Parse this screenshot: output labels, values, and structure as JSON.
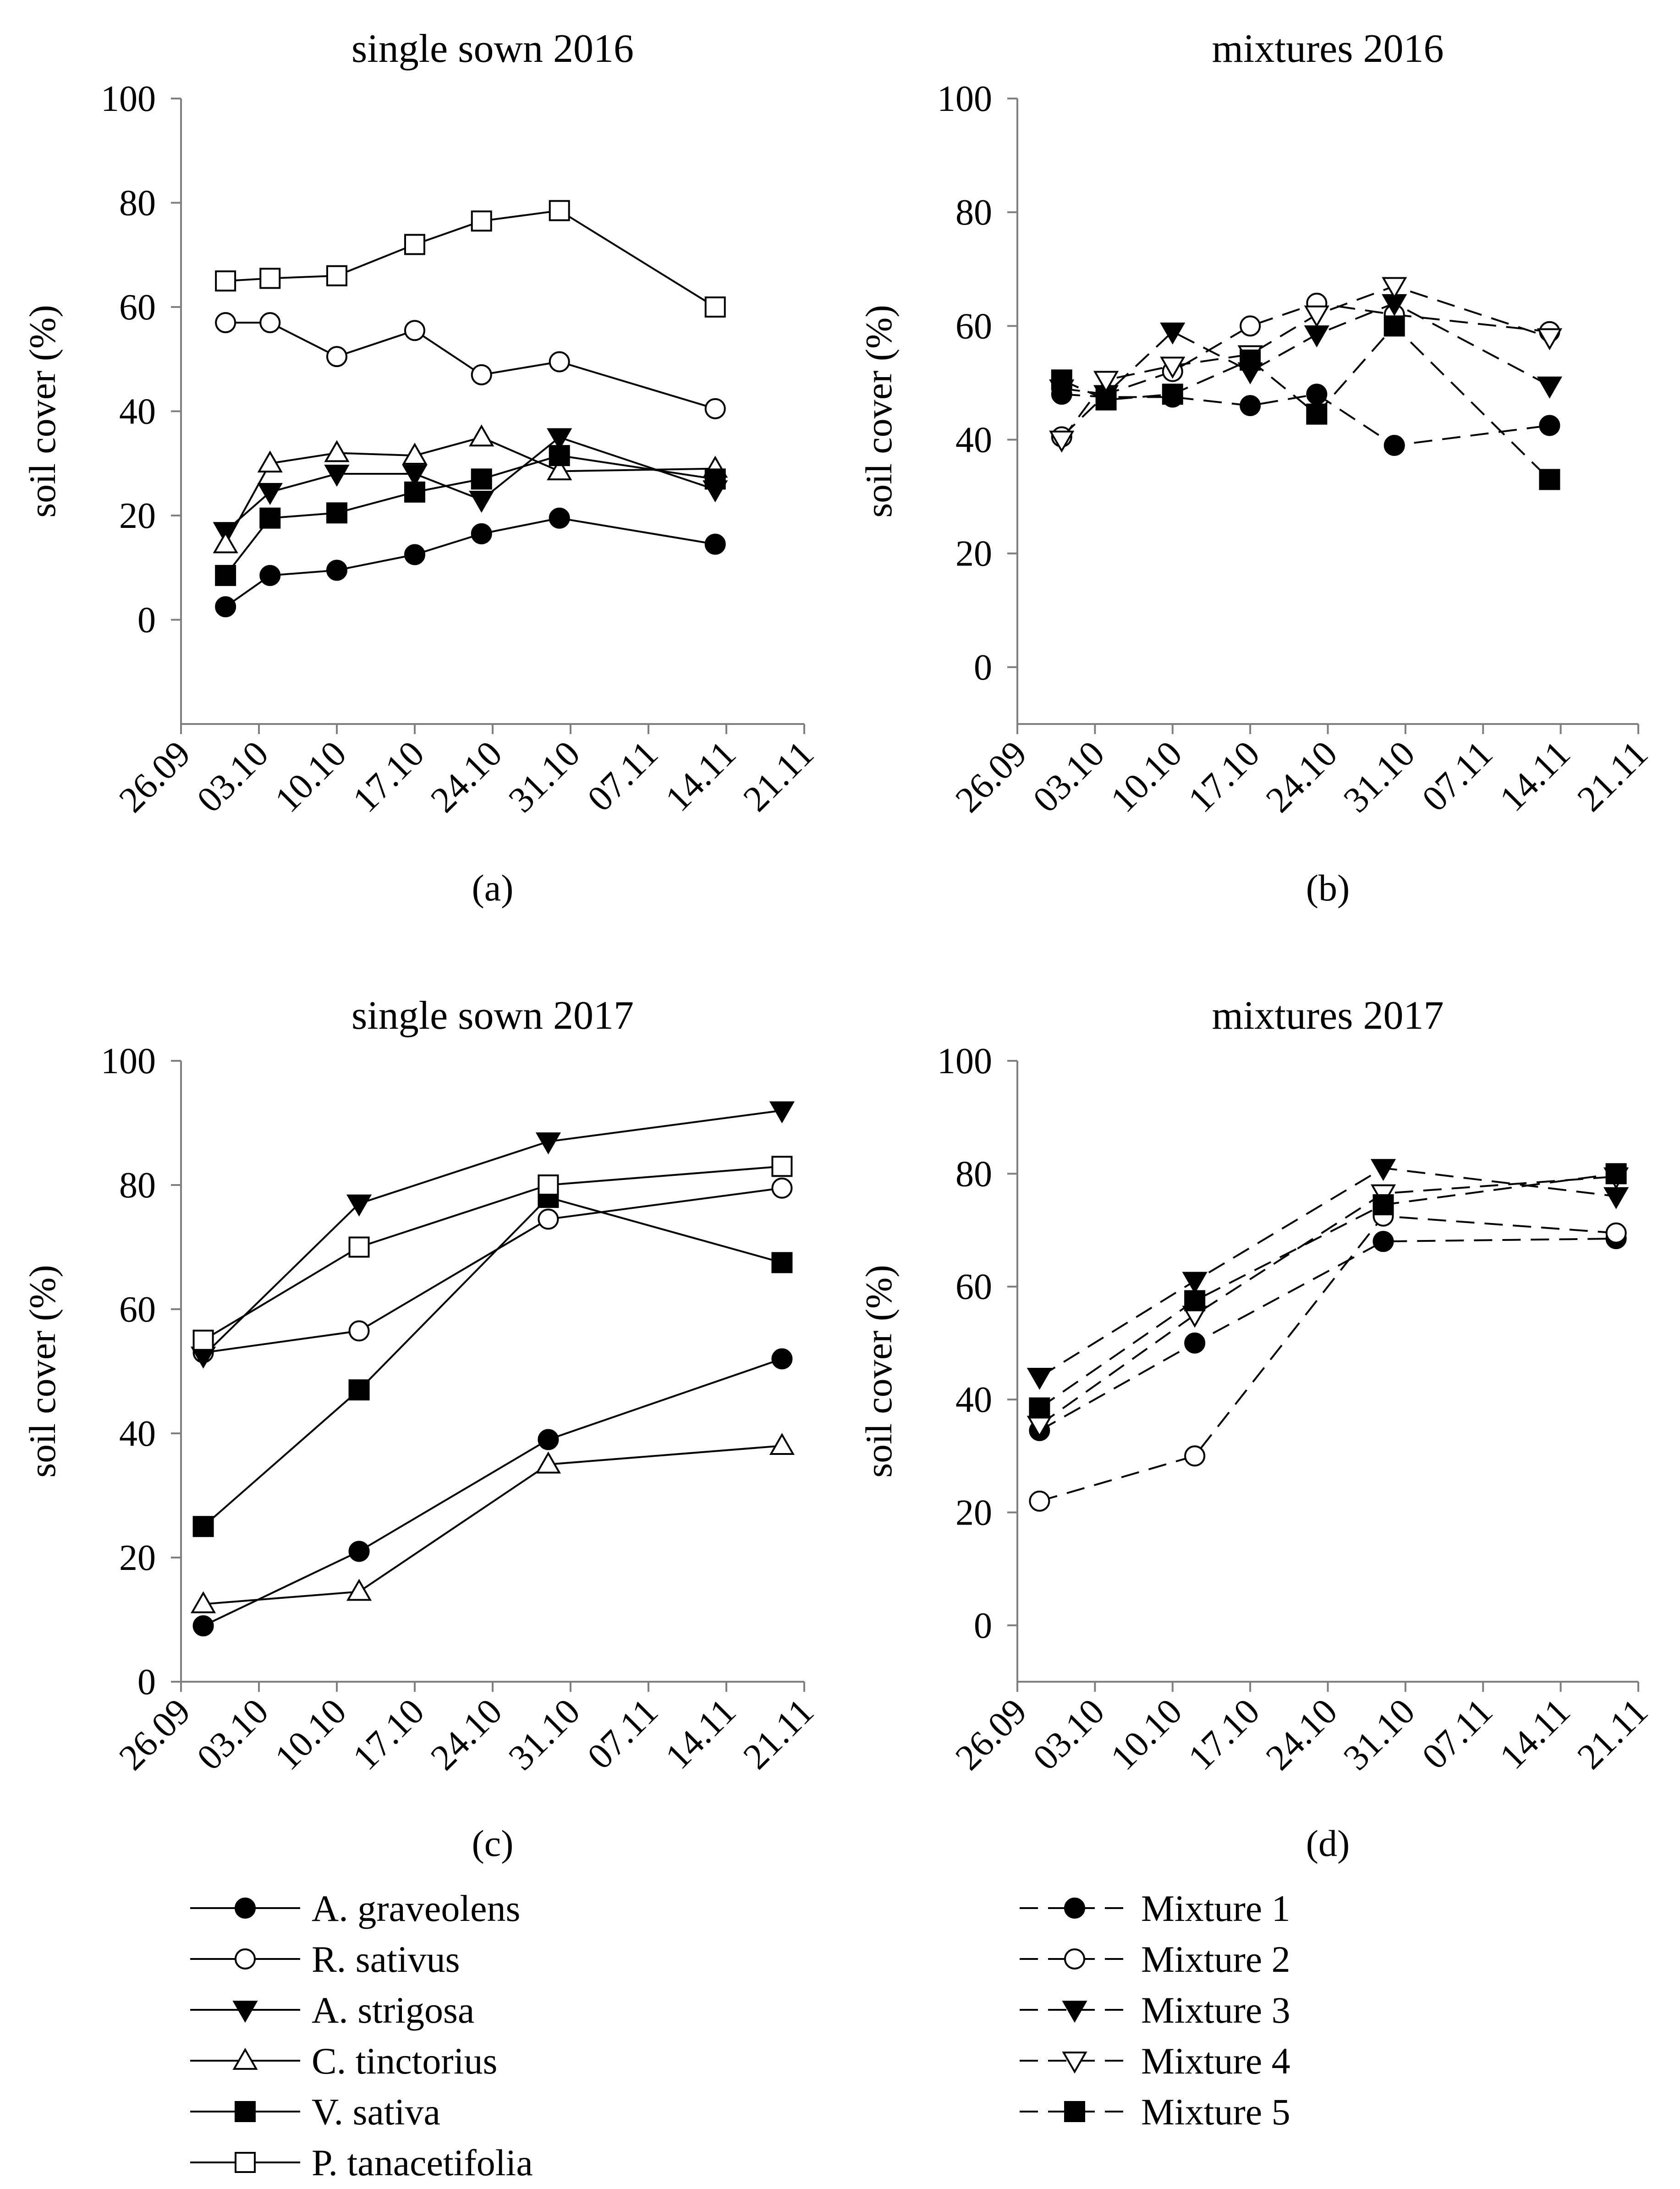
{
  "chart_data": [
    {
      "type": "line",
      "panel": "(a)",
      "title": "single sown 2016",
      "ylabel": "soil cover (%)",
      "xlabel": "",
      "ylim": [
        -20,
        100
      ],
      "yticks": [
        0,
        20,
        40,
        60,
        80,
        100
      ],
      "xlim": [
        0,
        56
      ],
      "x_tick_labels": [
        "26.09",
        "03.10",
        "10.10",
        "17.10",
        "24.10",
        "31.10",
        "07.11",
        "14.11",
        "21.11"
      ],
      "x_days": [
        4,
        8,
        14,
        21,
        27,
        34,
        48
      ],
      "series": [
        {
          "name": "A. graveolens",
          "values": [
            2.5,
            8.5,
            9.5,
            12.5,
            16.5,
            19.5,
            14.5
          ]
        },
        {
          "name": "R. sativus",
          "values": [
            57,
            57,
            50.5,
            55.5,
            47,
            49.5,
            40.5
          ]
        },
        {
          "name": "A. strigosa",
          "values": [
            17,
            24.5,
            28,
            28,
            23,
            35,
            25
          ]
        },
        {
          "name": "C. tinctorius",
          "values": [
            14.5,
            30,
            32,
            31.5,
            35,
            28.5,
            29
          ]
        },
        {
          "name": "V. sativa",
          "values": [
            8.5,
            19.5,
            20.5,
            24.5,
            27,
            31.5,
            27
          ]
        },
        {
          "name": "P. tanacetifolia",
          "values": [
            65,
            65.5,
            66,
            72,
            76.5,
            78.5,
            60
          ]
        }
      ]
    },
    {
      "type": "line",
      "panel": "(b)",
      "title": "mixtures 2016",
      "ylabel": "soil cover (%)",
      "xlabel": "",
      "ylim": [
        -10,
        100
      ],
      "yticks": [
        0,
        20,
        40,
        60,
        80,
        100
      ],
      "xlim": [
        0,
        56
      ],
      "x_tick_labels": [
        "26.09",
        "03.10",
        "10.10",
        "17.10",
        "24.10",
        "31.10",
        "07.11",
        "14.11",
        "21.11"
      ],
      "x_days": [
        4,
        8,
        14,
        21,
        27,
        34,
        48
      ],
      "series": [
        {
          "name": "Mixture 1",
          "values": [
            48,
            47.5,
            47.5,
            46,
            48,
            39,
            42.5
          ]
        },
        {
          "name": "Mixture 2",
          "values": [
            40.5,
            48,
            52,
            60,
            64,
            62,
            59
          ]
        },
        {
          "name": "Mixture 3",
          "values": [
            49,
            48,
            59,
            52,
            58.5,
            64,
            49.5
          ]
        },
        {
          "name": "Mixture 4",
          "values": [
            40,
            50.5,
            53,
            55,
            62,
            67,
            58
          ]
        },
        {
          "name": "Mixture 5",
          "values": [
            50.5,
            47,
            48,
            54,
            44.5,
            60,
            33
          ]
        }
      ]
    },
    {
      "type": "line",
      "panel": "(c)",
      "title": "single sown 2017",
      "ylabel": "soil cover (%)",
      "xlabel": "",
      "ylim": [
        0,
        100
      ],
      "yticks": [
        0,
        20,
        40,
        60,
        80,
        100
      ],
      "xlim": [
        0,
        56
      ],
      "x_tick_labels": [
        "26.09",
        "03.10",
        "10.10",
        "17.10",
        "24.10",
        "31.10",
        "07.11",
        "14.11",
        "21.11"
      ],
      "x_days": [
        2,
        16,
        33,
        54
      ],
      "series": [
        {
          "name": "A. graveolens",
          "values": [
            9,
            21,
            39,
            52
          ]
        },
        {
          "name": "R. sativus",
          "values": [
            53,
            56.5,
            74.5,
            79.5
          ]
        },
        {
          "name": "A. strigosa",
          "values": [
            52.5,
            77,
            87,
            92
          ]
        },
        {
          "name": "C. tinctorius",
          "values": [
            12.5,
            14.5,
            35,
            38
          ]
        },
        {
          "name": "V. sativa",
          "values": [
            25,
            47,
            78,
            67.5
          ]
        },
        {
          "name": "P. tanacetifolia",
          "values": [
            55,
            70,
            80,
            83
          ]
        }
      ]
    },
    {
      "type": "line",
      "panel": "(d)",
      "title": "mixtures 2017",
      "ylabel": "soil cover (%)",
      "xlabel": "",
      "ylim": [
        -10,
        100
      ],
      "yticks": [
        0,
        20,
        40,
        60,
        80,
        100
      ],
      "xlim": [
        0,
        56
      ],
      "x_tick_labels": [
        "26.09",
        "03.10",
        "10.10",
        "17.10",
        "24.10",
        "31.10",
        "07.11",
        "14.11",
        "21.11"
      ],
      "x_days": [
        2,
        16,
        33,
        54
      ],
      "series": [
        {
          "name": "Mixture 1",
          "values": [
            34.5,
            50,
            68,
            68.5
          ]
        },
        {
          "name": "Mixture 2",
          "values": [
            22,
            30,
            72.5,
            69.5
          ]
        },
        {
          "name": "Mixture 3",
          "values": [
            44,
            61,
            81,
            76
          ]
        },
        {
          "name": "Mixture 4",
          "values": [
            35.5,
            55,
            76.5,
            79.5
          ]
        },
        {
          "name": "Mixture 5",
          "values": [
            38.5,
            57.5,
            74.5,
            80
          ]
        }
      ]
    }
  ],
  "legends": {
    "single": [
      {
        "name": "A. graveolens",
        "marker": "circle",
        "fill": "#000000"
      },
      {
        "name": "R. sativus",
        "marker": "circle",
        "fill": "#ffffff"
      },
      {
        "name": "A. strigosa",
        "marker": "triangle-down",
        "fill": "#000000"
      },
      {
        "name": "C. tinctorius",
        "marker": "triangle-up",
        "fill": "#ffffff"
      },
      {
        "name": "V. sativa",
        "marker": "square",
        "fill": "#000000"
      },
      {
        "name": "P. tanacetifolia",
        "marker": "square",
        "fill": "#ffffff"
      }
    ],
    "mixtures": [
      {
        "name": "Mixture 1",
        "marker": "circle",
        "fill": "#000000"
      },
      {
        "name": "Mixture 2",
        "marker": "circle",
        "fill": "#ffffff"
      },
      {
        "name": "Mixture 3",
        "marker": "triangle-down",
        "fill": "#000000"
      },
      {
        "name": "Mixture 4",
        "marker": "triangle-down",
        "fill": "#ffffff"
      },
      {
        "name": "Mixture 5",
        "marker": "square",
        "fill": "#000000"
      }
    ]
  },
  "colors": {
    "line": "#000000",
    "axis": "#7f7f7f",
    "background": "#ffffff"
  }
}
